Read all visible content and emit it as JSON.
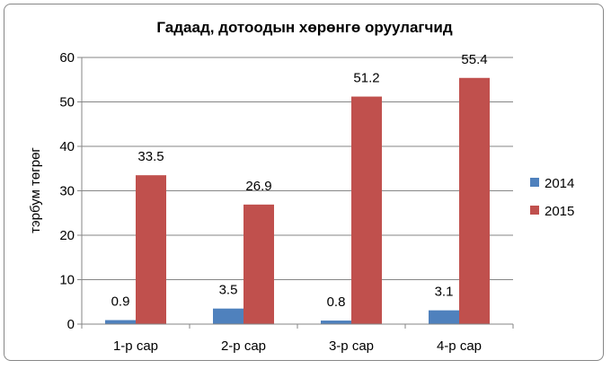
{
  "chart_data": {
    "type": "bar",
    "title": "Гадаад, дотоодын хөрөнгө оруулагчид",
    "ylabel": "тэрбум төгрөг",
    "xlabel": "",
    "categories": [
      "1-р сар",
      "2-р сар",
      "3-р сар",
      "4-р сар"
    ],
    "series": [
      {
        "name": "2014",
        "color": "#4F81BD",
        "values": [
          0.9,
          3.5,
          0.8,
          3.1
        ]
      },
      {
        "name": "2015",
        "color": "#C0504D",
        "values": [
          33.5,
          26.9,
          51.2,
          55.4
        ]
      }
    ],
    "ylim": [
      0,
      60
    ],
    "yticks": [
      0,
      10,
      20,
      30,
      40,
      50,
      60
    ],
    "grid": true,
    "legend_position": "right"
  }
}
